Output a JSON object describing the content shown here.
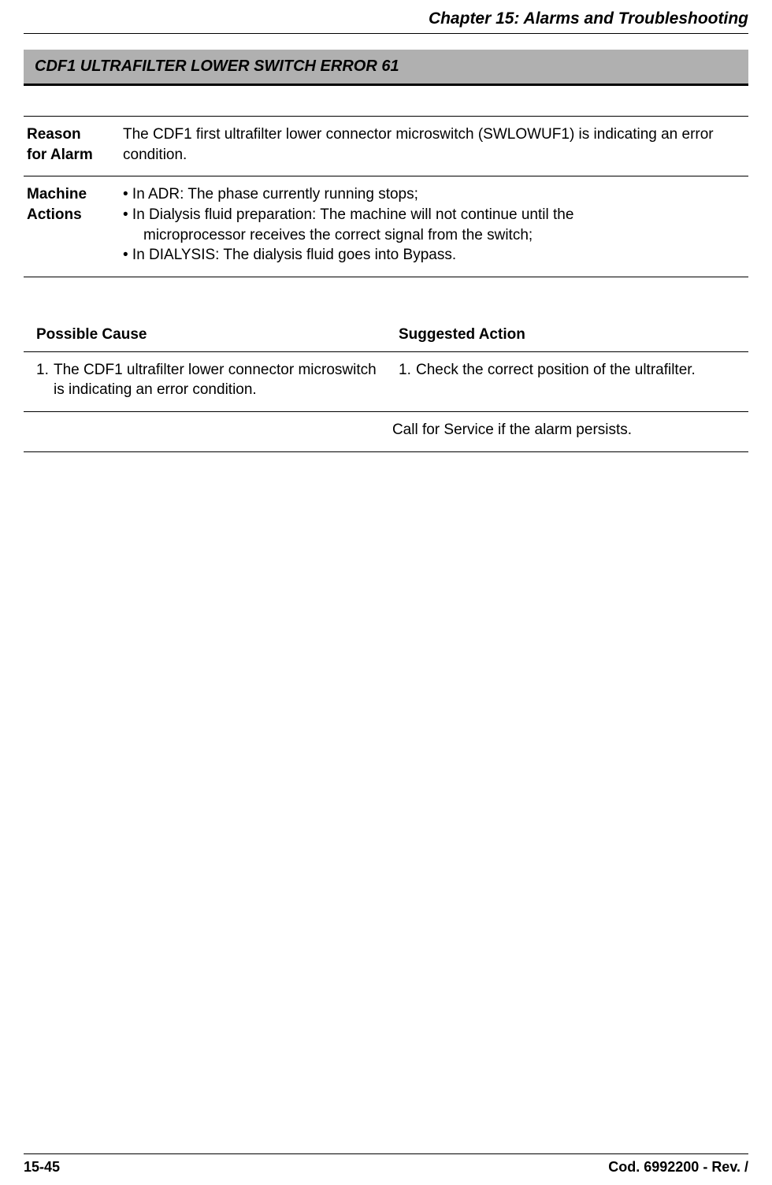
{
  "header": {
    "chapter_title": "Chapter 15: Alarms and Troubleshooting"
  },
  "alarm": {
    "banner": "CDF1 ULTRAFILTER LOWER SWITCH ERROR 61"
  },
  "info": {
    "reason_label_l1": "Reason",
    "reason_label_l2": "for Alarm",
    "reason_text": "The CDF1 first ultrafilter lower connector microswitch (SWLOWUF1) is indicating an error condition.",
    "machine_label_l1": "Machine",
    "machine_label_l2": "Actions",
    "machine_b1": "• In ADR: The phase currently running stops;",
    "machine_b2": "• In Dialysis fluid preparation: The machine will not continue until the",
    "machine_b2_cont": "microprocessor receives the correct signal from the switch;",
    "machine_b3": "• In DIALYSIS: The dialysis fluid goes into Bypass."
  },
  "cause_table": {
    "col1_header": "Possible Cause",
    "col2_header": "Suggested Action",
    "row1_cause_num": "1.",
    "row1_cause_text": "The CDF1 ultrafilter lower connector microswitch is indicating an error condition.",
    "row1_action_num": "1.",
    "row1_action_text": "Check the correct position of the ultrafilter.",
    "persist_text": "Call for Service if the alarm persists."
  },
  "footer": {
    "page": "15-45",
    "code": "Cod. 6992200 - Rev. /"
  }
}
